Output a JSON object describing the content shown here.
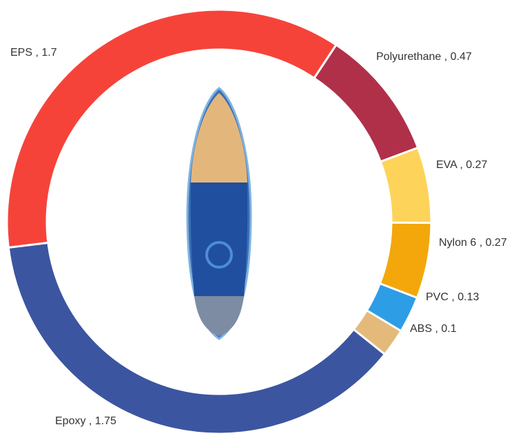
{
  "chart_data": {
    "type": "donut",
    "labels": [
      "EPS , 1.7",
      "Polyurethane , 0.47",
      "EVA , 0.27",
      "Nylon 6 , 0.27",
      "PVC , 0.13",
      "ABS , 0.1",
      "Epoxy , 1.75"
    ],
    "values": [
      1.7,
      0.47,
      0.27,
      0.27,
      0.13,
      0.1,
      1.75
    ],
    "colors": [
      "#f6433a",
      "#b0304a",
      "#fdd35a",
      "#f3a70b",
      "#2d9de5",
      "#e3ba7a",
      "#3c55a0"
    ]
  }
}
